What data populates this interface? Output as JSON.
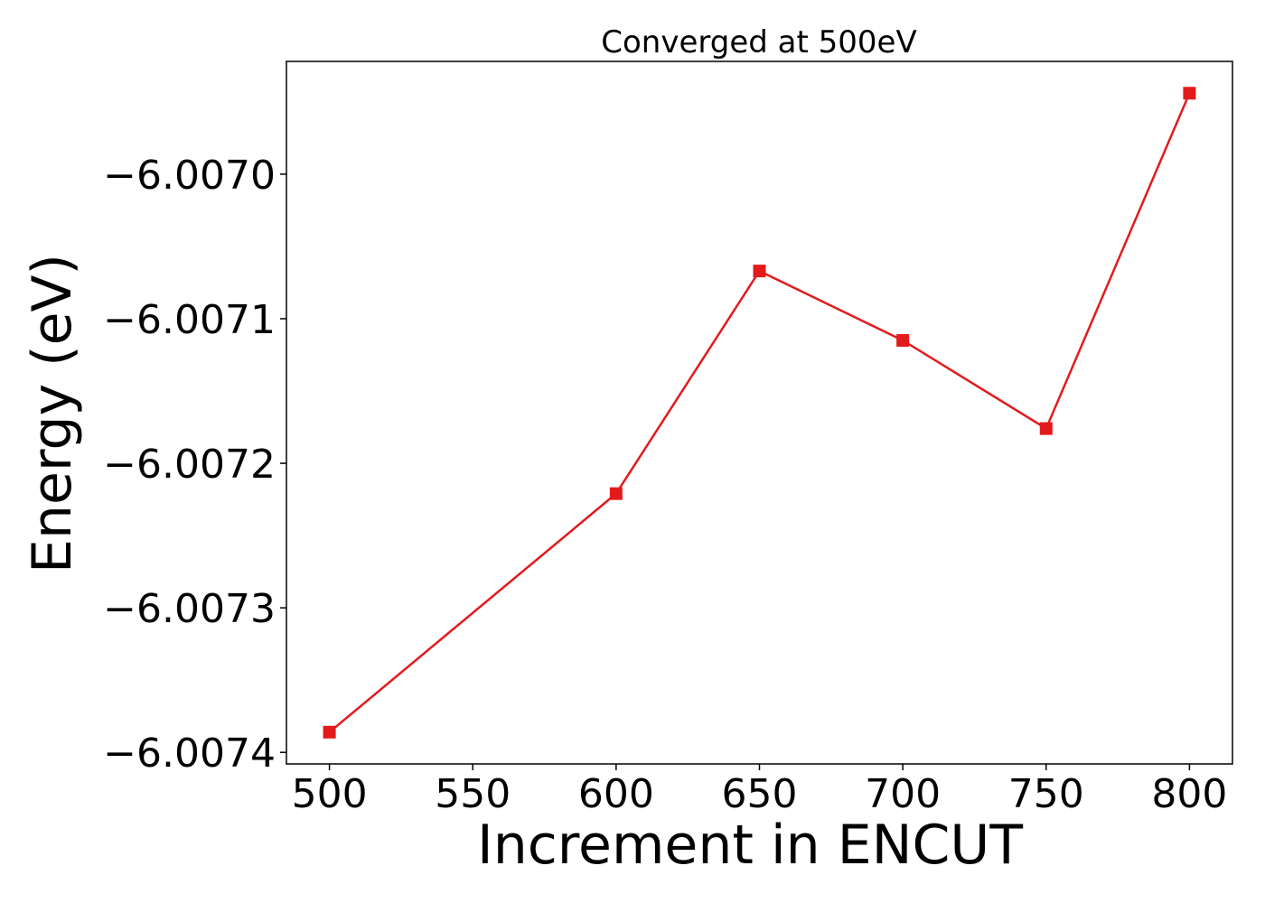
{
  "chart_data": {
    "type": "line",
    "title": "Converged at 500eV",
    "xlabel": "Increment in ENCUT",
    "ylabel": "Energy (eV)",
    "x": [
      500,
      600,
      650,
      700,
      750,
      800
    ],
    "series": [
      {
        "values": [
          -6.007386,
          -6.007221,
          -6.007067,
          -6.007115,
          -6.007176,
          -6.006944
        ],
        "color": "#e31a1c",
        "marker": "square"
      }
    ],
    "xlim": [
      485,
      815
    ],
    "ylim": [
      -6.007408,
      -6.006922
    ],
    "xticks": [
      500,
      550,
      600,
      650,
      700,
      750,
      800
    ],
    "xtick_labels": [
      "500",
      "550",
      "600",
      "650",
      "700",
      "750",
      "800"
    ],
    "yticks": [
      -6.0074,
      -6.0073,
      -6.0072,
      -6.0071,
      -6.007
    ],
    "ytick_labels": [
      "−6.0074",
      "−6.0073",
      "−6.0072",
      "−6.0071",
      "−6.0070"
    ],
    "grid": false,
    "legend": "none"
  }
}
